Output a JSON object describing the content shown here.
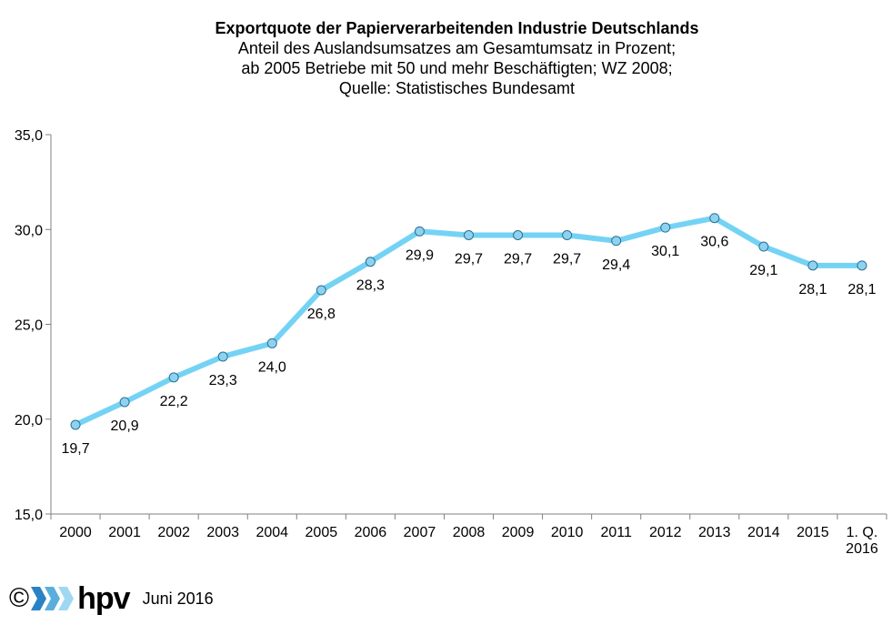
{
  "chart_data": {
    "type": "line",
    "title": "Exportquote der Papierverarbeitenden Industrie Deutschlands",
    "subtitle_lines": [
      "Anteil des Auslandsumsatzes am Gesamtumsatz in Prozent;",
      "ab 2005 Betriebe mit 50 und mehr Beschäftigten; WZ 2008;",
      "Quelle: Statistisches Bundesamt"
    ],
    "categories": [
      "2000",
      "2001",
      "2002",
      "2003",
      "2004",
      "2005",
      "2006",
      "2007",
      "2008",
      "2009",
      "2010",
      "2011",
      "2012",
      "2013",
      "2014",
      "2015",
      "1. Q. 2016"
    ],
    "values": [
      19.7,
      20.9,
      22.2,
      23.3,
      24.0,
      26.8,
      28.3,
      29.9,
      29.7,
      29.7,
      29.7,
      29.4,
      30.1,
      30.6,
      29.1,
      28.1,
      28.1
    ],
    "data_labels": [
      "19,7",
      "20,9",
      "22,2",
      "23,3",
      "24,0",
      "26,8",
      "28,3",
      "29,9",
      "29,7",
      "29,7",
      "29,7",
      "29,4",
      "30,1",
      "30,6",
      "29,1",
      "28,1",
      "28,1"
    ],
    "y_ticks": [
      15.0,
      20.0,
      25.0,
      30.0,
      35.0
    ],
    "y_tick_labels": [
      "15,0",
      "20,0",
      "25,0",
      "30,0",
      "35,0"
    ],
    "ylim": [
      15,
      35
    ],
    "xlabel": "",
    "ylabel": "",
    "grid": false,
    "legend": "none",
    "colors": {
      "line": "#74d3f5",
      "marker_fill": "#8cd3f2",
      "marker_stroke": "#2f6f8f",
      "axis": "#808080"
    }
  },
  "footer": {
    "copyright": "©",
    "logo_text": "hpv",
    "date": "Juni 2016",
    "logo_colors": [
      "#2a82c4",
      "#5aaede",
      "#9fd8f3"
    ]
  }
}
